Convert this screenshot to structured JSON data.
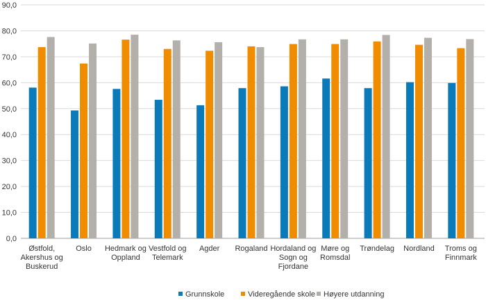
{
  "chart_data": {
    "type": "bar",
    "title": "",
    "xlabel": "",
    "ylabel": "",
    "ylim": [
      0,
      90
    ],
    "yticks": [
      "0,0",
      "10,0",
      "20,0",
      "30,0",
      "40,0",
      "50,0",
      "60,0",
      "70,0",
      "80,0",
      "90,0"
    ],
    "grid": "horizontal",
    "legend_position": "bottom",
    "categories": [
      [
        "Østfold,",
        "Akershus og",
        "Buskerud"
      ],
      [
        "Oslo"
      ],
      [
        "Hedmark og",
        "Oppland"
      ],
      [
        "Vestfold og",
        "Telemark"
      ],
      [
        "Agder"
      ],
      [
        "Rogaland"
      ],
      [
        "Hordaland og",
        "Sogn og",
        "Fjordane"
      ],
      [
        "Møre og",
        "Romsdal"
      ],
      [
        "Trøndelag"
      ],
      [
        "Nordland"
      ],
      [
        "Troms og",
        "Finnmark"
      ]
    ],
    "series": [
      {
        "name": "Grunnskole",
        "color": "#0a7ab8",
        "values": [
          58.1,
          49.3,
          57.6,
          53.4,
          51.3,
          57.9,
          58.6,
          61.6,
          57.9,
          60.2,
          59.9
        ]
      },
      {
        "name": "Videregående skole",
        "color": "#f08c00",
        "values": [
          73.7,
          67.4,
          76.6,
          73.0,
          72.3,
          74.0,
          74.9,
          74.9,
          75.9,
          74.6,
          73.3
        ]
      },
      {
        "name": "Høyere utdanning",
        "color": "#b3b0ab",
        "values": [
          77.6,
          75.1,
          78.5,
          76.3,
          75.6,
          73.7,
          76.7,
          76.7,
          78.4,
          77.3,
          76.8
        ]
      }
    ]
  }
}
